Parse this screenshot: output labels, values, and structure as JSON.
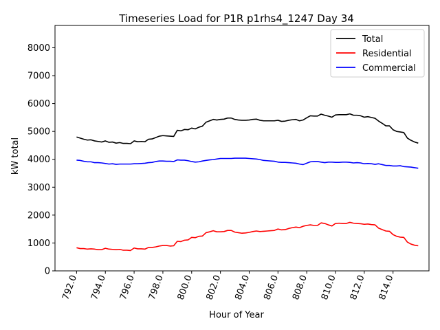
{
  "chart_data": {
    "type": "line",
    "title": "Timeseries Load for P1R p1rhs4_1247  Day 34",
    "xlabel": "Hour of Year",
    "ylabel": "kW total",
    "xlim": [
      790.5,
      816.5
    ],
    "ylim": [
      0,
      8800
    ],
    "xticks": [
      792,
      794,
      796,
      798,
      800,
      802,
      804,
      806,
      808,
      810,
      812,
      814
    ],
    "xtick_labels": [
      "792.0",
      "794.0",
      "796.0",
      "798.0",
      "800.0",
      "802.0",
      "804.0",
      "806.0",
      "808.0",
      "810.0",
      "812.0",
      "814.0"
    ],
    "yticks": [
      0,
      1000,
      2000,
      3000,
      4000,
      5000,
      6000,
      7000,
      8000
    ],
    "ytick_labels": [
      "0",
      "1000",
      "2000",
      "3000",
      "4000",
      "5000",
      "6000",
      "7000",
      "8000"
    ],
    "legend_position": "top-right",
    "x": [
      792.0,
      792.25,
      792.5,
      792.75,
      793.0,
      793.25,
      793.5,
      793.75,
      794.0,
      794.25,
      794.5,
      794.75,
      795.0,
      795.25,
      795.5,
      795.75,
      796.0,
      796.25,
      796.5,
      796.75,
      797.0,
      797.25,
      797.5,
      797.75,
      798.0,
      798.25,
      798.5,
      798.75,
      799.0,
      799.25,
      799.5,
      799.75,
      800.0,
      800.25,
      800.5,
      800.75,
      801.0,
      801.25,
      801.5,
      801.75,
      802.0,
      802.25,
      802.5,
      802.75,
      803.0,
      803.25,
      803.5,
      803.75,
      804.0,
      804.25,
      804.5,
      804.75,
      805.0,
      805.25,
      805.5,
      805.75,
      806.0,
      806.25,
      806.5,
      806.75,
      807.0,
      807.25,
      807.5,
      807.75,
      808.0,
      808.25,
      808.5,
      808.75,
      809.0,
      809.25,
      809.5,
      809.75,
      810.0,
      810.25,
      810.5,
      810.75,
      811.0,
      811.25,
      811.5,
      811.75,
      812.0,
      812.25,
      812.5,
      812.75,
      813.0,
      813.25,
      813.5,
      813.75,
      814.0,
      814.25,
      814.5,
      814.75,
      815.0,
      815.25,
      815.5,
      815.75
    ],
    "series": [
      {
        "name": "Total",
        "color": "#000000",
        "values": [
          4800,
          4760,
          4720,
          4690,
          4700,
          4660,
          4640,
          4620,
          4660,
          4610,
          4620,
          4580,
          4600,
          4570,
          4570,
          4560,
          4660,
          4630,
          4640,
          4630,
          4720,
          4730,
          4780,
          4830,
          4850,
          4840,
          4830,
          4820,
          5040,
          5020,
          5070,
          5060,
          5120,
          5090,
          5150,
          5190,
          5330,
          5380,
          5430,
          5410,
          5430,
          5440,
          5480,
          5480,
          5430,
          5410,
          5400,
          5400,
          5410,
          5430,
          5440,
          5400,
          5380,
          5380,
          5380,
          5380,
          5400,
          5360,
          5370,
          5400,
          5420,
          5430,
          5380,
          5410,
          5490,
          5560,
          5550,
          5550,
          5620,
          5580,
          5550,
          5510,
          5590,
          5600,
          5600,
          5600,
          5630,
          5580,
          5580,
          5560,
          5510,
          5530,
          5500,
          5470,
          5370,
          5290,
          5200,
          5200,
          5060,
          5000,
          4980,
          4960,
          4760,
          4680,
          4620,
          4580
        ]
      },
      {
        "name": "Residential",
        "color": "#ff0000",
        "values": [
          830,
          800,
          800,
          780,
          790,
          780,
          760,
          760,
          810,
          780,
          770,
          760,
          770,
          740,
          740,
          730,
          820,
          790,
          790,
          780,
          840,
          840,
          860,
          890,
          910,
          910,
          890,
          900,
          1060,
          1050,
          1100,
          1110,
          1200,
          1190,
          1240,
          1250,
          1370,
          1400,
          1440,
          1400,
          1400,
          1410,
          1450,
          1450,
          1390,
          1370,
          1350,
          1360,
          1380,
          1410,
          1430,
          1410,
          1420,
          1430,
          1440,
          1450,
          1500,
          1470,
          1480,
          1520,
          1550,
          1570,
          1550,
          1600,
          1630,
          1650,
          1630,
          1630,
          1720,
          1700,
          1650,
          1610,
          1700,
          1710,
          1700,
          1700,
          1740,
          1710,
          1700,
          1690,
          1670,
          1680,
          1660,
          1650,
          1530,
          1480,
          1430,
          1420,
          1300,
          1240,
          1210,
          1200,
          1030,
          960,
          920,
          900
        ]
      },
      {
        "name": "Commercial",
        "color": "#0000ff",
        "values": [
          3970,
          3960,
          3930,
          3910,
          3910,
          3880,
          3880,
          3870,
          3850,
          3830,
          3840,
          3820,
          3830,
          3830,
          3830,
          3830,
          3840,
          3840,
          3850,
          3860,
          3880,
          3890,
          3920,
          3940,
          3940,
          3930,
          3930,
          3920,
          3980,
          3970,
          3970,
          3950,
          3920,
          3900,
          3910,
          3940,
          3960,
          3980,
          3990,
          4010,
          4030,
          4030,
          4030,
          4030,
          4040,
          4040,
          4040,
          4040,
          4030,
          4020,
          4010,
          3990,
          3960,
          3950,
          3940,
          3930,
          3900,
          3890,
          3890,
          3880,
          3870,
          3860,
          3830,
          3810,
          3860,
          3910,
          3920,
          3920,
          3900,
          3880,
          3900,
          3900,
          3890,
          3890,
          3900,
          3900,
          3890,
          3870,
          3880,
          3870,
          3840,
          3850,
          3840,
          3820,
          3840,
          3810,
          3780,
          3780,
          3760,
          3760,
          3770,
          3740,
          3730,
          3720,
          3700,
          3680
        ]
      }
    ]
  }
}
